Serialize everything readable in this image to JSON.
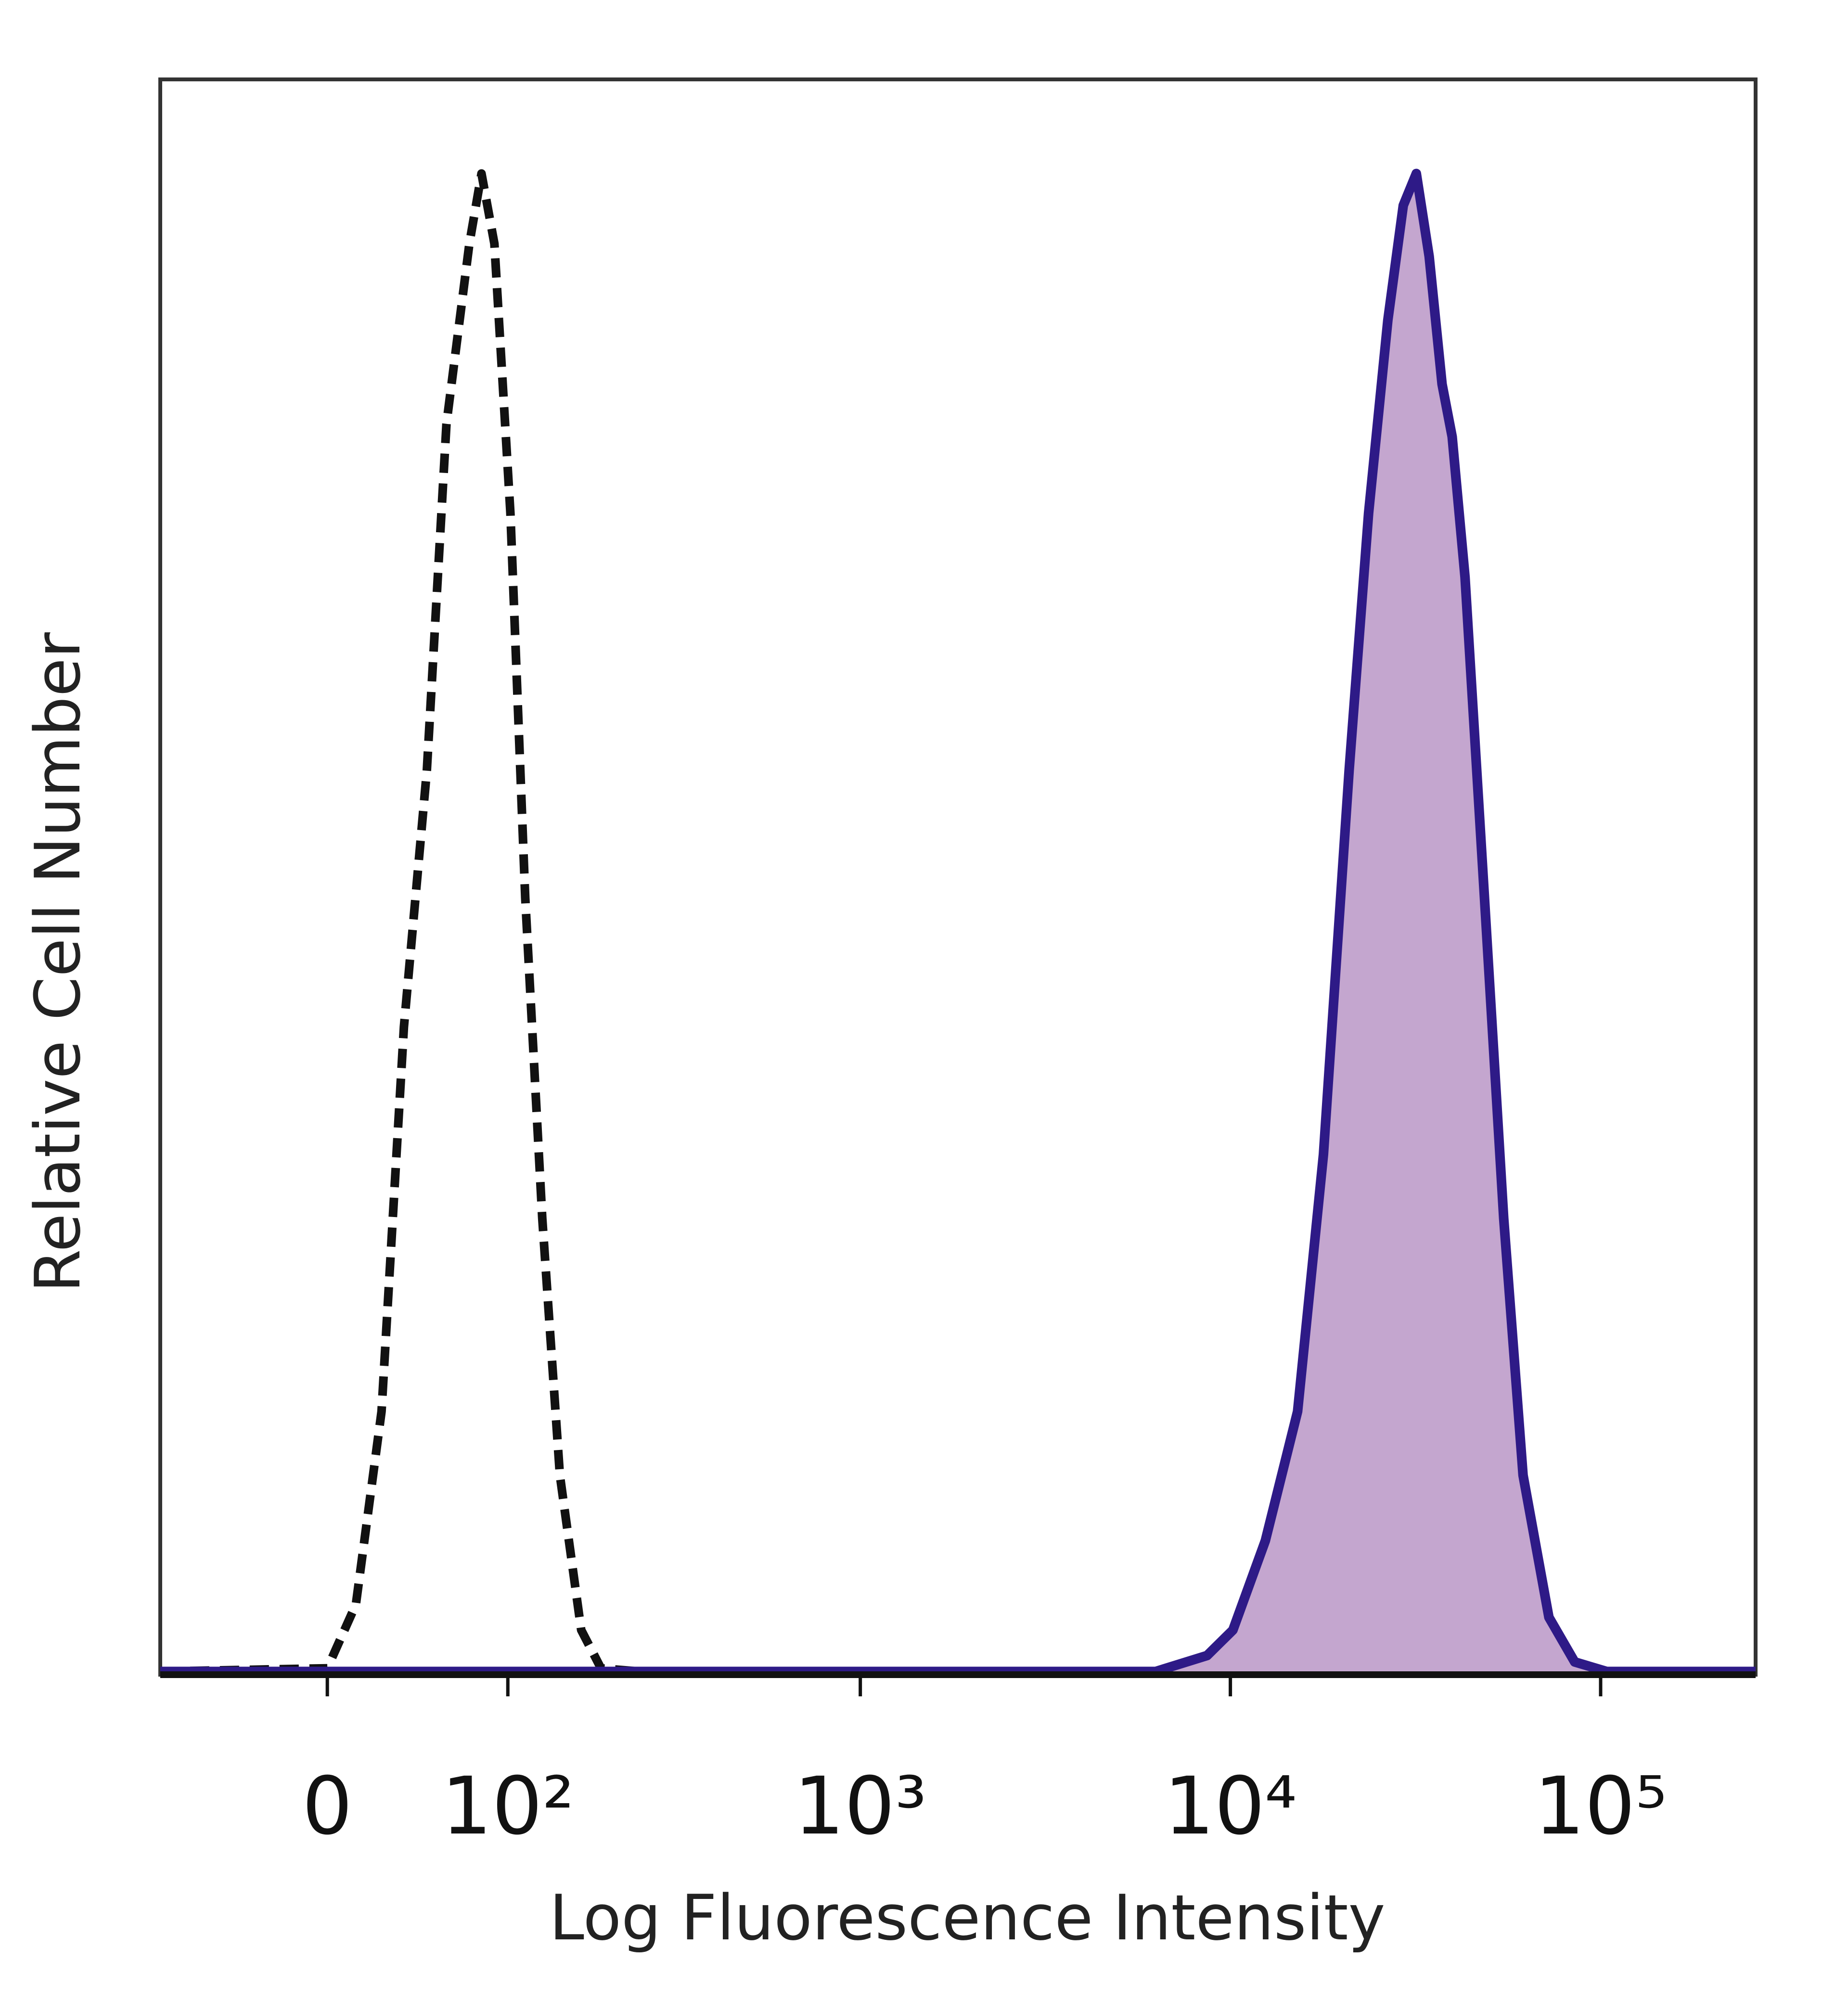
{
  "chart_data": {
    "type": "area",
    "x_label": "Log Fluorescence Intensity",
    "y_label": "Relative Cell Number",
    "xscale": "biexponential",
    "xlim": [
      -90,
      262144
    ],
    "xticks": [
      {
        "value": 0,
        "label": "0"
      },
      {
        "value": 100,
        "label": "10²"
      },
      {
        "value": 1000,
        "label": "10³"
      },
      {
        "value": 10000,
        "label": "10⁴"
      },
      {
        "value": 100000,
        "label": "10⁵"
      }
    ],
    "ylim": [
      0,
      100
    ],
    "series": [
      {
        "color": "#111111",
        "dash": true,
        "fill": null,
        "x": [
          -90,
          0,
          13,
          25,
          36,
          48,
          59,
          73,
          81,
          90,
          102,
          114,
          129,
          146,
          169,
          193,
          248,
          262144
        ],
        "values": [
          0.2,
          0.4,
          4.4,
          16.5,
          40.6,
          56.7,
          78.4,
          89.7,
          94.1,
          89.7,
          72.8,
          48.7,
          28.6,
          12.5,
          2.8,
          0.4,
          0.2,
          0.2
        ]
      },
      {
        "color": "#2e1a87",
        "dash": false,
        "fill": "#c4a6cf",
        "x": [
          -90,
          6280,
          8650,
          10160,
          12430,
          15190,
          17840,
          20930,
          23620,
          26620,
          29310,
          31780,
          34430,
          37300,
          39720,
          43030,
          48560,
          54740,
          61730,
          72500,
          85100,
          104000,
          262144
        ],
        "values": [
          0.2,
          0.2,
          1.2,
          2.8,
          8.4,
          16.5,
          32.6,
          56.7,
          72.8,
          84.9,
          92.1,
          94.1,
          88.9,
          80.9,
          77.6,
          68.8,
          48.7,
          28.6,
          12.5,
          3.6,
          0.8,
          0.2,
          0.2
        ]
      }
    ]
  }
}
